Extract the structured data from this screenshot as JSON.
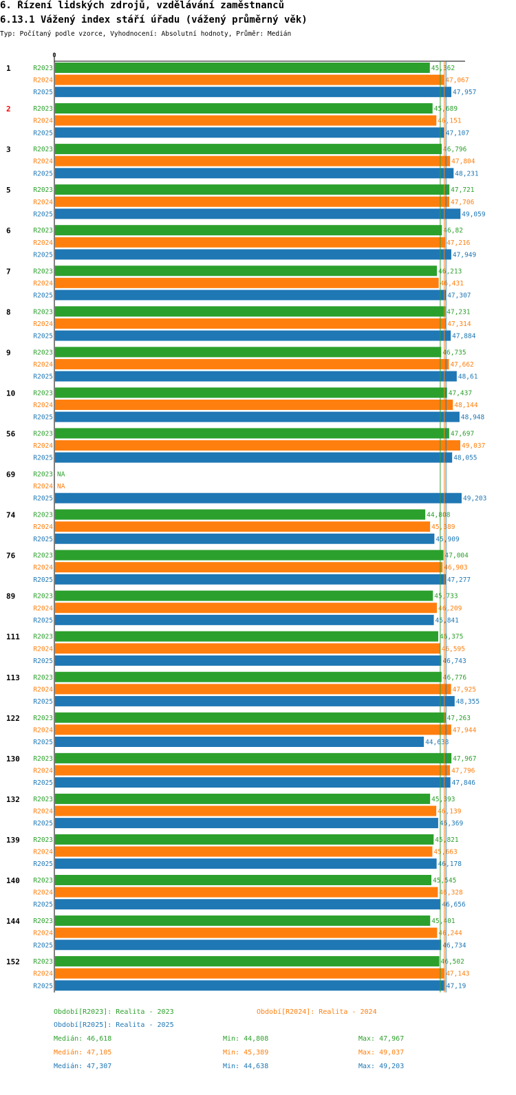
{
  "section_title": "6. Řízení lidských zdrojů, vzdělávání zaměstnanců",
  "chart_title": "6.13.1 Vážený index stáří úřadu (vážený průměrný věk)",
  "chart_subtitle": "Typ: Počítaný podle vzorce, Vyhodnocení: Absolutní hodnoty, Průměr: Medián",
  "colors": {
    "R2023": "#2ca02c",
    "R2024": "#ff7f0e",
    "R2025": "#1f77b4",
    "highlight_group": "#ff0000"
  },
  "chart_data": {
    "type": "bar",
    "orientation": "horizontal",
    "axis_zero_label": "0",
    "xlim": [
      0,
      49.203
    ],
    "highlight_group": "2",
    "categories": [
      "1",
      "2",
      "3",
      "5",
      "6",
      "7",
      "8",
      "9",
      "10",
      "56",
      "69",
      "74",
      "76",
      "89",
      "111",
      "113",
      "122",
      "130",
      "132",
      "139",
      "140",
      "144",
      "152"
    ],
    "series": [
      {
        "name": "R2023",
        "values": [
          45.362,
          45.689,
          46.796,
          47.721,
          46.82,
          46.213,
          47.231,
          46.735,
          47.437,
          47.697,
          null,
          44.808,
          47.004,
          45.733,
          46.375,
          46.776,
          47.263,
          47.967,
          45.393,
          45.821,
          45.545,
          45.401,
          46.502
        ],
        "labels": [
          "45,362",
          "45,689",
          "46,796",
          "47,721",
          "46,82",
          "46,213",
          "47,231",
          "46,735",
          "47,437",
          "47,697",
          "NA",
          "44,808",
          "47,004",
          "45,733",
          "46,375",
          "46,776",
          "47,263",
          "47,967",
          "45,393",
          "45,821",
          "45,545",
          "45,401",
          "46,502"
        ]
      },
      {
        "name": "R2024",
        "values": [
          47.067,
          46.151,
          47.804,
          47.706,
          47.216,
          46.431,
          47.314,
          47.662,
          48.144,
          49.037,
          null,
          45.389,
          46.903,
          46.209,
          46.595,
          47.925,
          47.944,
          47.796,
          46.139,
          45.663,
          46.328,
          46.244,
          47.143
        ],
        "labels": [
          "47,067",
          "46,151",
          "47,804",
          "47,706",
          "47,216",
          "46,431",
          "47,314",
          "47,662",
          "48,144",
          "49,037",
          "NA",
          "45,389",
          "46,903",
          "46,209",
          "46,595",
          "47,925",
          "47,944",
          "47,796",
          "46,139",
          "45,663",
          "46,328",
          "46,244",
          "47,143"
        ]
      },
      {
        "name": "R2025",
        "values": [
          47.957,
          47.107,
          48.231,
          49.059,
          47.949,
          47.307,
          47.884,
          48.61,
          48.948,
          48.055,
          49.203,
          45.909,
          47.277,
          45.841,
          46.743,
          48.355,
          44.638,
          47.846,
          46.369,
          46.178,
          46.656,
          46.734,
          47.19
        ],
        "labels": [
          "47,957",
          "47,107",
          "48,231",
          "49,059",
          "47,949",
          "47,307",
          "47,884",
          "48,61",
          "48,948",
          "48,055",
          "49,203",
          "45,909",
          "47,277",
          "45,841",
          "46,743",
          "48,355",
          "44,638",
          "47,846",
          "46,369",
          "46,178",
          "46,656",
          "46,734",
          "47,19"
        ]
      }
    ],
    "median_lines": [
      46.618,
      47.105,
      47.307
    ]
  },
  "footer": {
    "legend_2023": "Období[R2023]: Realita - 2023",
    "legend_2024": "Období[R2024]: Realita - 2024",
    "legend_2025": "Období[R2025]: Realita - 2025",
    "stats": [
      {
        "median": "Medián: 46,618",
        "min": "Min: 44,808",
        "max": "Max: 47,967"
      },
      {
        "median": "Medián: 47,105",
        "min": "Min: 45,389",
        "max": "Max: 49,037"
      },
      {
        "median": "Medián: 47,307",
        "min": "Min: 44,638",
        "max": "Max: 49,203"
      }
    ]
  }
}
